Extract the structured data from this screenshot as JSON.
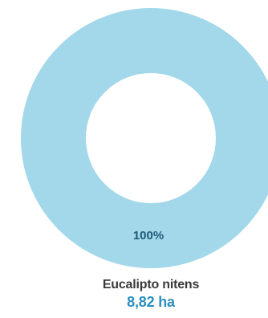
{
  "chart_data": {
    "type": "pie",
    "style": "donut",
    "slices": [
      {
        "name": "Eucalipto nitens",
        "value": 8.82,
        "value_label": "8,82 ha",
        "percent": 100,
        "percent_label": "100%",
        "color": "#a3d8eb"
      }
    ],
    "label_color": "#1f5a76",
    "value_color": "#2a8fbf",
    "name_color": "#3a3a3a"
  }
}
